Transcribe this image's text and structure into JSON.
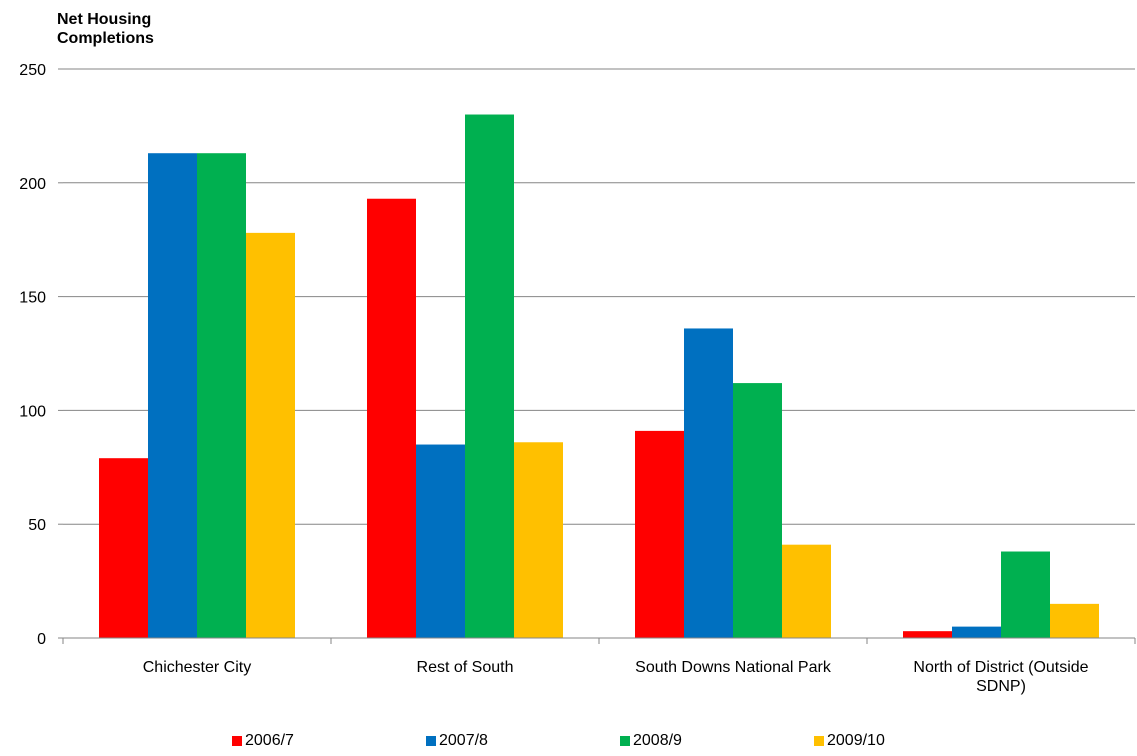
{
  "chart_data": {
    "type": "bar",
    "ylabel": "Net Housing Completions",
    "xlabel": "",
    "ylim": [
      0,
      250
    ],
    "yticks": [
      0,
      50,
      100,
      150,
      200,
      250
    ],
    "grid": true,
    "legend_position": "bottom",
    "categories": [
      "Chichester City",
      "Rest of South",
      "South Downs National Park",
      "North of District (Outside SDNP)"
    ],
    "series": [
      {
        "name": "2006/7",
        "color": "#ff0000",
        "values": [
          79,
          193,
          91,
          3
        ]
      },
      {
        "name": "2007/8",
        "color": "#0070c0",
        "values": [
          213,
          85,
          136,
          5
        ]
      },
      {
        "name": "2008/9",
        "color": "#00b050",
        "values": [
          213,
          230,
          112,
          38
        ]
      },
      {
        "name": "2009/10",
        "color": "#ffc000",
        "values": [
          178,
          86,
          41,
          15
        ]
      }
    ]
  }
}
